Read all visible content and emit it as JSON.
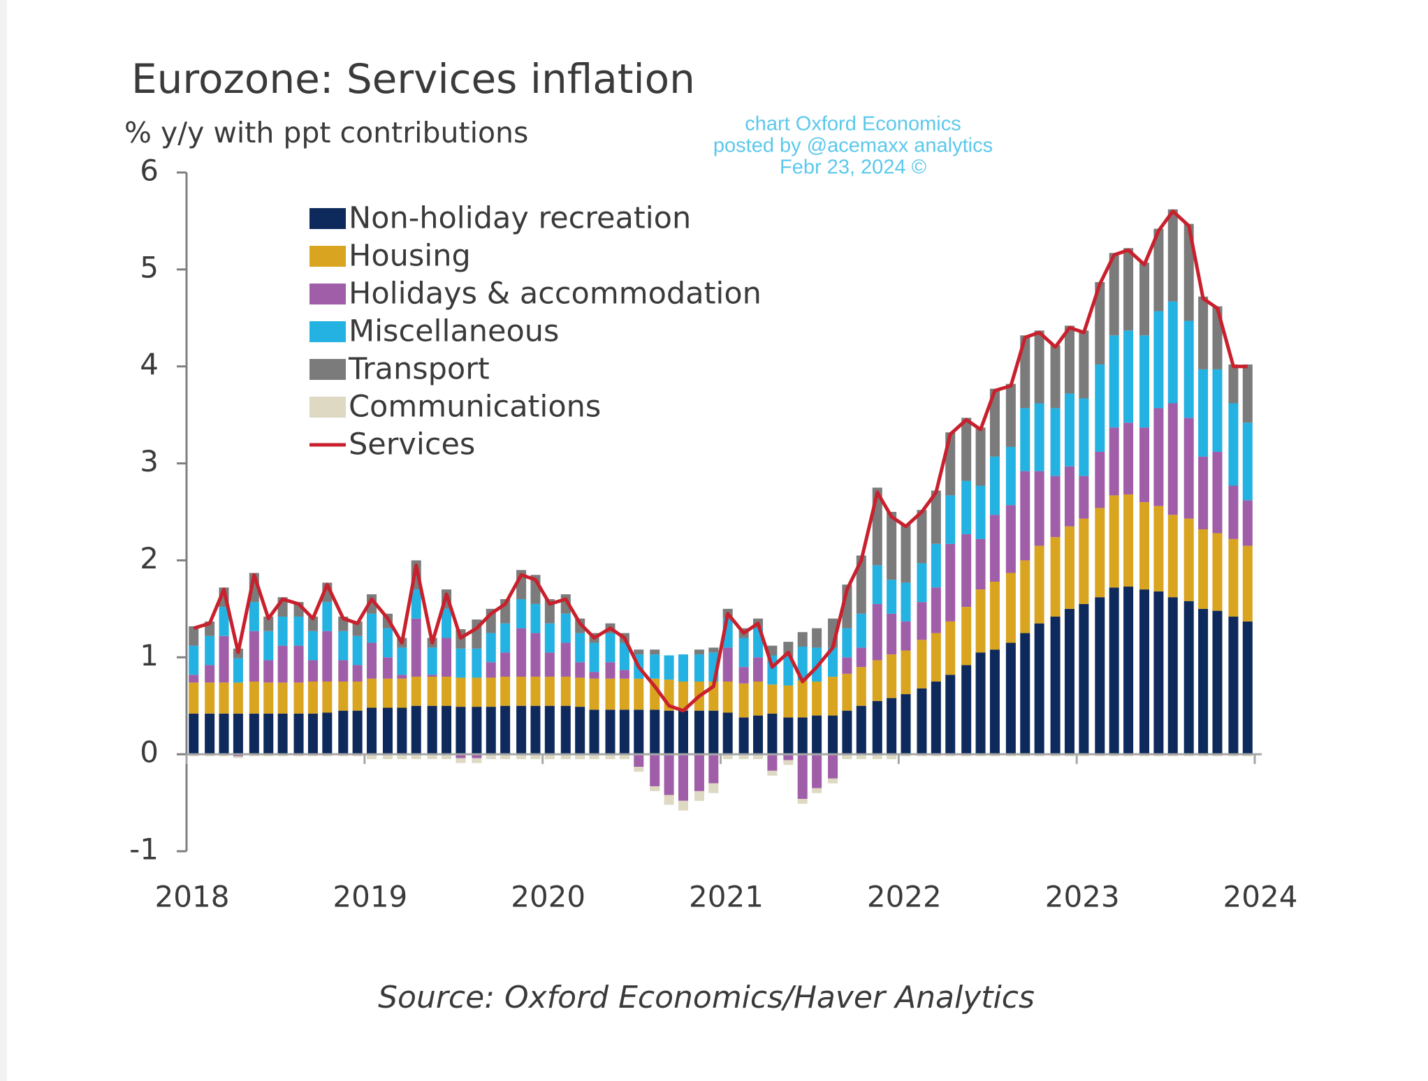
{
  "chart_data": {
    "type": "bar",
    "stacked": true,
    "title": "Eurozone: Services inflation",
    "subtitle": "% y/y with ppt contributions",
    "annotations": [
      "chart Oxford Economics",
      "posted by @acemaxx analytics",
      "Febr 23, 2024 ©"
    ],
    "source": "Source: Oxford Economics/Haver Analytics",
    "xlim": [
      2018,
      2024
    ],
    "xticks": [
      2018,
      2019,
      2020,
      2021,
      2022,
      2023,
      2024
    ],
    "ylim": [
      -1,
      6
    ],
    "yticks": [
      -1,
      0,
      1,
      2,
      3,
      4,
      5,
      6
    ],
    "x": [
      2018.04,
      2018.13,
      2018.21,
      2018.29,
      2018.38,
      2018.46,
      2018.54,
      2018.63,
      2018.71,
      2018.79,
      2018.88,
      2018.96,
      2019.04,
      2019.13,
      2019.21,
      2019.29,
      2019.38,
      2019.46,
      2019.54,
      2019.63,
      2019.71,
      2019.79,
      2019.88,
      2019.96,
      2020.04,
      2020.13,
      2020.21,
      2020.29,
      2020.38,
      2020.46,
      2020.54,
      2020.63,
      2020.71,
      2020.79,
      2020.88,
      2020.96,
      2021.04,
      2021.13,
      2021.21,
      2021.29,
      2021.38,
      2021.46,
      2021.54,
      2021.63,
      2021.71,
      2021.79,
      2021.88,
      2021.96,
      2022.04,
      2022.13,
      2022.21,
      2022.29,
      2022.38,
      2022.46,
      2022.54,
      2022.63,
      2022.71,
      2022.79,
      2022.88,
      2022.96,
      2023.04,
      2023.13,
      2023.21,
      2023.29,
      2023.38,
      2023.46,
      2023.54,
      2023.63,
      2023.71,
      2023.79,
      2023.88,
      2023.96
    ],
    "series": [
      {
        "name": "Non-holiday recreation",
        "color": "#0e2a5c",
        "values": [
          0.42,
          0.42,
          0.42,
          0.42,
          0.42,
          0.42,
          0.42,
          0.42,
          0.42,
          0.43,
          0.45,
          0.45,
          0.48,
          0.48,
          0.48,
          0.5,
          0.5,
          0.5,
          0.49,
          0.49,
          0.49,
          0.5,
          0.5,
          0.5,
          0.5,
          0.5,
          0.49,
          0.46,
          0.46,
          0.46,
          0.46,
          0.46,
          0.45,
          0.45,
          0.45,
          0.45,
          0.43,
          0.38,
          0.4,
          0.42,
          0.38,
          0.38,
          0.4,
          0.4,
          0.45,
          0.5,
          0.55,
          0.58,
          0.62,
          0.68,
          0.75,
          0.82,
          0.92,
          1.05,
          1.08,
          1.15,
          1.25,
          1.35,
          1.42,
          1.5,
          1.55,
          1.62,
          1.72,
          1.73,
          1.7,
          1.68,
          1.62,
          1.58,
          1.5,
          1.48,
          1.42,
          1.37
        ]
      },
      {
        "name": "Housing",
        "color": "#d9a520",
        "values": [
          0.32,
          0.32,
          0.32,
          0.32,
          0.33,
          0.32,
          0.32,
          0.32,
          0.33,
          0.32,
          0.3,
          0.3,
          0.3,
          0.3,
          0.3,
          0.3,
          0.3,
          0.3,
          0.3,
          0.3,
          0.3,
          0.3,
          0.3,
          0.3,
          0.3,
          0.3,
          0.3,
          0.32,
          0.32,
          0.32,
          0.32,
          0.32,
          0.32,
          0.3,
          0.3,
          0.3,
          0.32,
          0.35,
          0.35,
          0.3,
          0.33,
          0.38,
          0.35,
          0.4,
          0.38,
          0.4,
          0.42,
          0.45,
          0.45,
          0.5,
          0.5,
          0.55,
          0.6,
          0.65,
          0.7,
          0.72,
          0.75,
          0.8,
          0.82,
          0.85,
          0.88,
          0.92,
          0.95,
          0.95,
          0.9,
          0.88,
          0.85,
          0.85,
          0.82,
          0.8,
          0.8,
          0.78
        ]
      },
      {
        "name": "Holidays & accommodation",
        "color": "#a05ea8",
        "values": [
          0.08,
          0.18,
          0.48,
          -0.02,
          0.52,
          0.23,
          0.38,
          0.38,
          0.22,
          0.52,
          0.22,
          0.17,
          0.37,
          0.22,
          0.04,
          0.6,
          0.02,
          0.4,
          -0.04,
          -0.04,
          0.16,
          0.25,
          0.5,
          0.45,
          0.25,
          0.35,
          0.16,
          0.07,
          0.17,
          0.09,
          -0.13,
          -0.33,
          -0.42,
          -0.48,
          -0.38,
          -0.3,
          0.35,
          0.17,
          0.25,
          -0.17,
          -0.06,
          -0.46,
          -0.35,
          -0.25,
          0.17,
          0.2,
          0.58,
          0.42,
          0.3,
          0.39,
          0.47,
          0.8,
          0.75,
          0.52,
          0.69,
          0.7,
          0.92,
          0.77,
          0.63,
          0.62,
          0.44,
          0.58,
          0.7,
          0.74,
          0.77,
          1.01,
          1.15,
          1.04,
          0.75,
          0.84,
          0.55,
          0.47
        ]
      },
      {
        "name": "Miscellaneous",
        "color": "#23b2e2",
        "values": [
          0.3,
          0.3,
          0.3,
          0.25,
          0.3,
          0.3,
          0.3,
          0.3,
          0.3,
          0.3,
          0.3,
          0.3,
          0.3,
          0.3,
          0.28,
          0.3,
          0.28,
          0.3,
          0.3,
          0.3,
          0.3,
          0.3,
          0.3,
          0.3,
          0.3,
          0.3,
          0.3,
          0.3,
          0.3,
          0.28,
          0.25,
          0.25,
          0.25,
          0.28,
          0.28,
          0.3,
          0.3,
          0.3,
          0.3,
          0.3,
          0.3,
          0.35,
          0.35,
          0.3,
          0.3,
          0.35,
          0.4,
          0.35,
          0.4,
          0.4,
          0.45,
          0.5,
          0.55,
          0.55,
          0.6,
          0.6,
          0.65,
          0.7,
          0.7,
          0.75,
          0.8,
          0.9,
          0.95,
          0.95,
          0.95,
          1.0,
          1.05,
          1.0,
          0.9,
          0.85,
          0.85,
          0.8
        ]
      },
      {
        "name": "Transport",
        "color": "#7b7b7b",
        "values": [
          0.2,
          0.15,
          0.2,
          0.1,
          0.3,
          0.15,
          0.2,
          0.15,
          0.15,
          0.2,
          0.15,
          0.15,
          0.2,
          0.15,
          0.1,
          0.3,
          0.1,
          0.2,
          0.2,
          0.3,
          0.25,
          0.25,
          0.3,
          0.3,
          0.25,
          0.2,
          0.15,
          0.1,
          0.1,
          0.1,
          0.05,
          0.05,
          0,
          0,
          0.05,
          0.05,
          0.1,
          0.1,
          0.1,
          0.1,
          0.15,
          0.15,
          0.2,
          0.3,
          0.45,
          0.6,
          0.8,
          0.7,
          0.6,
          0.55,
          0.55,
          0.65,
          0.65,
          0.6,
          0.7,
          0.65,
          0.75,
          0.75,
          0.65,
          0.7,
          0.7,
          0.85,
          0.85,
          0.85,
          0.75,
          0.85,
          0.95,
          1.0,
          0.75,
          0.65,
          0.4,
          0.6
        ]
      },
      {
        "name": "Communications",
        "color": "#ddd9c3",
        "values": [
          -0.02,
          -0.02,
          -0.02,
          -0.02,
          -0.02,
          -0.02,
          -0.02,
          -0.02,
          -0.02,
          -0.02,
          -0.02,
          -0.02,
          -0.05,
          -0.05,
          -0.05,
          -0.05,
          -0.05,
          -0.05,
          -0.05,
          -0.05,
          -0.05,
          -0.05,
          -0.05,
          -0.05,
          -0.05,
          -0.05,
          -0.05,
          -0.05,
          -0.05,
          -0.05,
          -0.05,
          -0.05,
          -0.1,
          -0.1,
          -0.1,
          -0.1,
          -0.05,
          -0.05,
          -0.05,
          -0.05,
          -0.05,
          -0.05,
          -0.05,
          -0.05,
          -0.05,
          -0.05,
          -0.05,
          -0.05,
          -0.02,
          -0.02,
          -0.02,
          -0.02,
          -0.02,
          -0.02,
          -0.02,
          -0.02,
          -0.02,
          -0.02,
          -0.02,
          -0.02,
          -0.02,
          -0.02,
          -0.02,
          -0.02,
          -0.02,
          -0.02,
          -0.02,
          -0.02,
          -0.02,
          -0.02,
          -0.02,
          -0.02
        ]
      },
      {
        "name": "Services",
        "color": "#c8202c",
        "type": "line",
        "values": [
          1.3,
          1.35,
          1.7,
          1.05,
          1.85,
          1.4,
          1.6,
          1.55,
          1.4,
          1.75,
          1.4,
          1.35,
          1.6,
          1.4,
          1.15,
          1.95,
          1.15,
          1.65,
          1.2,
          1.3,
          1.45,
          1.55,
          1.85,
          1.8,
          1.55,
          1.6,
          1.35,
          1.2,
          1.3,
          1.2,
          0.9,
          0.7,
          0.5,
          0.45,
          0.6,
          0.7,
          1.45,
          1.25,
          1.35,
          0.9,
          1.05,
          0.75,
          0.9,
          1.1,
          1.7,
          2.0,
          2.7,
          2.45,
          2.35,
          2.5,
          2.7,
          3.3,
          3.45,
          3.35,
          3.75,
          3.8,
          4.3,
          4.35,
          4.2,
          4.4,
          4.35,
          4.85,
          5.15,
          5.2,
          5.05,
          5.4,
          5.6,
          5.45,
          4.7,
          4.6,
          4.0,
          4.0
        ]
      }
    ]
  }
}
